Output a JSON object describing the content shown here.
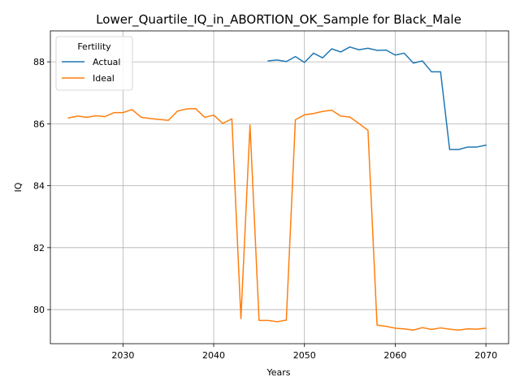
{
  "chart_data": {
    "type": "line",
    "title": "Lower_Quartile_IQ_in_ABORTION_OK_Sample for Black_Male",
    "xlabel": "Years",
    "ylabel": "IQ",
    "xlim": [
      2022,
      2072.5
    ],
    "ylim": [
      78.9,
      89.0
    ],
    "xticks": [
      2030,
      2040,
      2050,
      2060,
      2070
    ],
    "yticks": [
      80,
      82,
      84,
      86,
      88
    ],
    "grid": true,
    "legend": {
      "title": "Fertility",
      "placement": "top-left"
    },
    "series": [
      {
        "name": "Actual",
        "color": "#1f77b4",
        "x": [
          2046,
          2047,
          2048,
          2049,
          2050,
          2051,
          2052,
          2053,
          2054,
          2055,
          2056,
          2057,
          2058,
          2059,
          2060,
          2061,
          2062,
          2063,
          2064,
          2065,
          2066,
          2067,
          2068,
          2069,
          2070
        ],
        "y": [
          88.03,
          88.06,
          88.01,
          88.17,
          87.98,
          88.28,
          88.13,
          88.42,
          88.32,
          88.48,
          88.39,
          88.44,
          88.37,
          88.38,
          88.22,
          88.28,
          87.96,
          88.03,
          87.68,
          87.68,
          85.17,
          85.17,
          85.25,
          85.25,
          85.31
        ]
      },
      {
        "name": "Ideal",
        "color": "#ff7f0e",
        "x": [
          2024,
          2025,
          2026,
          2027,
          2028,
          2029,
          2030,
          2031,
          2032,
          2033,
          2034,
          2035,
          2036,
          2037,
          2038,
          2039,
          2040,
          2041,
          2042,
          2043,
          2044,
          2045,
          2046,
          2047,
          2048,
          2049,
          2050,
          2051,
          2052,
          2053,
          2054,
          2055,
          2056,
          2057,
          2058,
          2059,
          2060,
          2061,
          2062,
          2063,
          2064,
          2065,
          2066,
          2067,
          2068,
          2069,
          2070
        ],
        "y": [
          86.19,
          86.25,
          86.21,
          86.26,
          86.23,
          86.36,
          86.36,
          86.46,
          86.21,
          86.17,
          86.14,
          86.11,
          86.41,
          86.48,
          86.49,
          86.21,
          86.28,
          86.01,
          86.16,
          79.71,
          85.96,
          79.65,
          79.65,
          79.61,
          79.66,
          86.13,
          86.29,
          86.33,
          86.4,
          86.44,
          86.25,
          86.22,
          86.01,
          85.79,
          79.5,
          79.46,
          79.4,
          79.38,
          79.34,
          79.42,
          79.36,
          79.41,
          79.37,
          79.34,
          79.38,
          79.37,
          79.4
        ]
      }
    ]
  }
}
